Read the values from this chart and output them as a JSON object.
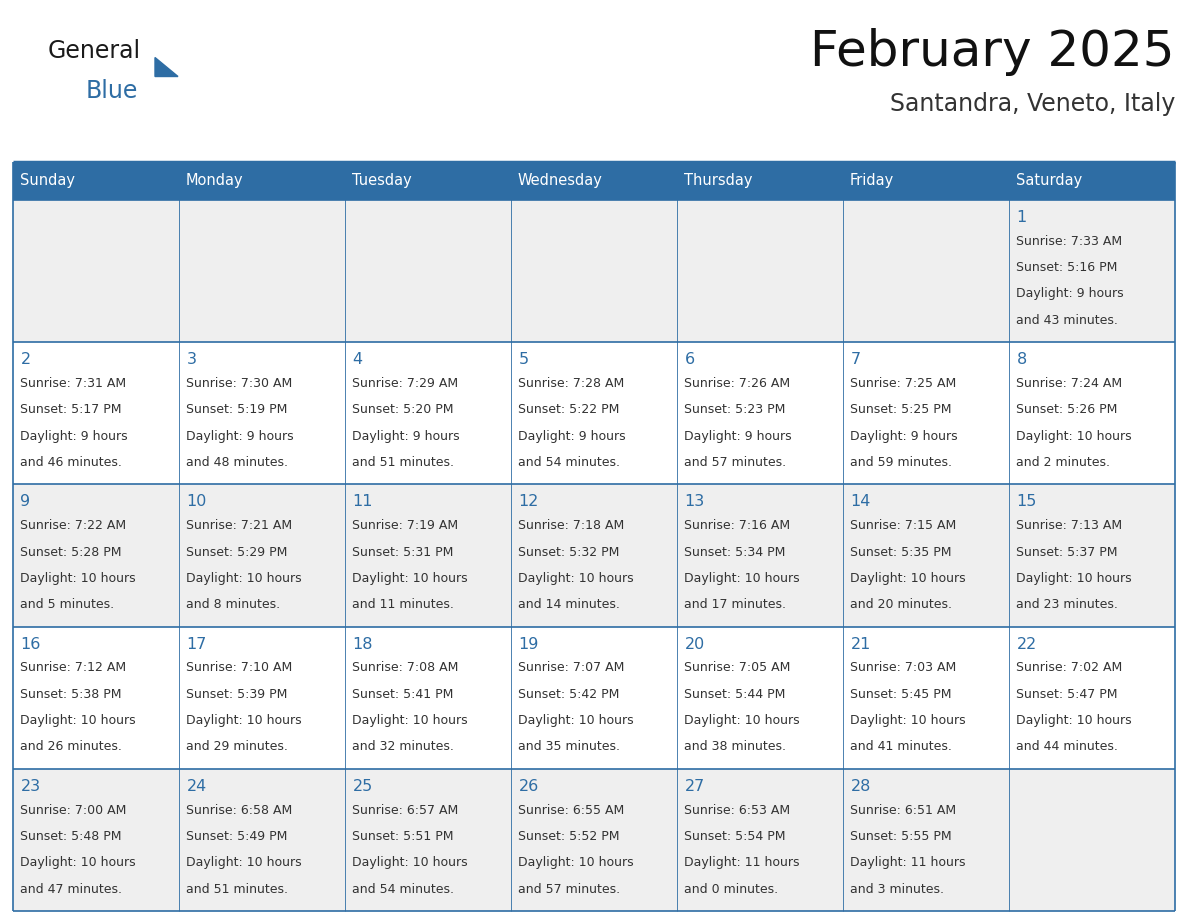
{
  "title": "February 2025",
  "subtitle": "Santandra, Veneto, Italy",
  "header_bg": "#2E6DA4",
  "header_text_color": "#FFFFFF",
  "day_names": [
    "Sunday",
    "Monday",
    "Tuesday",
    "Wednesday",
    "Thursday",
    "Friday",
    "Saturday"
  ],
  "cell_bg_odd": "#EFEFEF",
  "cell_bg_even": "#FFFFFF",
  "date_color": "#2E6DA4",
  "text_color": "#333333",
  "line_color": "#2E6DA4",
  "bg_color": "#FFFFFF",
  "calendar": [
    [
      null,
      null,
      null,
      null,
      null,
      null,
      1
    ],
    [
      2,
      3,
      4,
      5,
      6,
      7,
      8
    ],
    [
      9,
      10,
      11,
      12,
      13,
      14,
      15
    ],
    [
      16,
      17,
      18,
      19,
      20,
      21,
      22
    ],
    [
      23,
      24,
      25,
      26,
      27,
      28,
      null
    ]
  ],
  "sun_data": {
    "1": {
      "rise": "7:33 AM",
      "set": "5:16 PM",
      "hours": "9 hours",
      "mins": "and 43 minutes."
    },
    "2": {
      "rise": "7:31 AM",
      "set": "5:17 PM",
      "hours": "9 hours",
      "mins": "and 46 minutes."
    },
    "3": {
      "rise": "7:30 AM",
      "set": "5:19 PM",
      "hours": "9 hours",
      "mins": "and 48 minutes."
    },
    "4": {
      "rise": "7:29 AM",
      "set": "5:20 PM",
      "hours": "9 hours",
      "mins": "and 51 minutes."
    },
    "5": {
      "rise": "7:28 AM",
      "set": "5:22 PM",
      "hours": "9 hours",
      "mins": "and 54 minutes."
    },
    "6": {
      "rise": "7:26 AM",
      "set": "5:23 PM",
      "hours": "9 hours",
      "mins": "and 57 minutes."
    },
    "7": {
      "rise": "7:25 AM",
      "set": "5:25 PM",
      "hours": "9 hours",
      "mins": "and 59 minutes."
    },
    "8": {
      "rise": "7:24 AM",
      "set": "5:26 PM",
      "hours": "10 hours",
      "mins": "and 2 minutes."
    },
    "9": {
      "rise": "7:22 AM",
      "set": "5:28 PM",
      "hours": "10 hours",
      "mins": "and 5 minutes."
    },
    "10": {
      "rise": "7:21 AM",
      "set": "5:29 PM",
      "hours": "10 hours",
      "mins": "and 8 minutes."
    },
    "11": {
      "rise": "7:19 AM",
      "set": "5:31 PM",
      "hours": "10 hours",
      "mins": "and 11 minutes."
    },
    "12": {
      "rise": "7:18 AM",
      "set": "5:32 PM",
      "hours": "10 hours",
      "mins": "and 14 minutes."
    },
    "13": {
      "rise": "7:16 AM",
      "set": "5:34 PM",
      "hours": "10 hours",
      "mins": "and 17 minutes."
    },
    "14": {
      "rise": "7:15 AM",
      "set": "5:35 PM",
      "hours": "10 hours",
      "mins": "and 20 minutes."
    },
    "15": {
      "rise": "7:13 AM",
      "set": "5:37 PM",
      "hours": "10 hours",
      "mins": "and 23 minutes."
    },
    "16": {
      "rise": "7:12 AM",
      "set": "5:38 PM",
      "hours": "10 hours",
      "mins": "and 26 minutes."
    },
    "17": {
      "rise": "7:10 AM",
      "set": "5:39 PM",
      "hours": "10 hours",
      "mins": "and 29 minutes."
    },
    "18": {
      "rise": "7:08 AM",
      "set": "5:41 PM",
      "hours": "10 hours",
      "mins": "and 32 minutes."
    },
    "19": {
      "rise": "7:07 AM",
      "set": "5:42 PM",
      "hours": "10 hours",
      "mins": "and 35 minutes."
    },
    "20": {
      "rise": "7:05 AM",
      "set": "5:44 PM",
      "hours": "10 hours",
      "mins": "and 38 minutes."
    },
    "21": {
      "rise": "7:03 AM",
      "set": "5:45 PM",
      "hours": "10 hours",
      "mins": "and 41 minutes."
    },
    "22": {
      "rise": "7:02 AM",
      "set": "5:47 PM",
      "hours": "10 hours",
      "mins": "and 44 minutes."
    },
    "23": {
      "rise": "7:00 AM",
      "set": "5:48 PM",
      "hours": "10 hours",
      "mins": "and 47 minutes."
    },
    "24": {
      "rise": "6:58 AM",
      "set": "5:49 PM",
      "hours": "10 hours",
      "mins": "and 51 minutes."
    },
    "25": {
      "rise": "6:57 AM",
      "set": "5:51 PM",
      "hours": "10 hours",
      "mins": "and 54 minutes."
    },
    "26": {
      "rise": "6:55 AM",
      "set": "5:52 PM",
      "hours": "10 hours",
      "mins": "and 57 minutes."
    },
    "27": {
      "rise": "6:53 AM",
      "set": "5:54 PM",
      "hours": "11 hours",
      "mins": "and 0 minutes."
    },
    "28": {
      "rise": "6:51 AM",
      "set": "5:55 PM",
      "hours": "11 hours",
      "mins": "and 3 minutes."
    }
  }
}
